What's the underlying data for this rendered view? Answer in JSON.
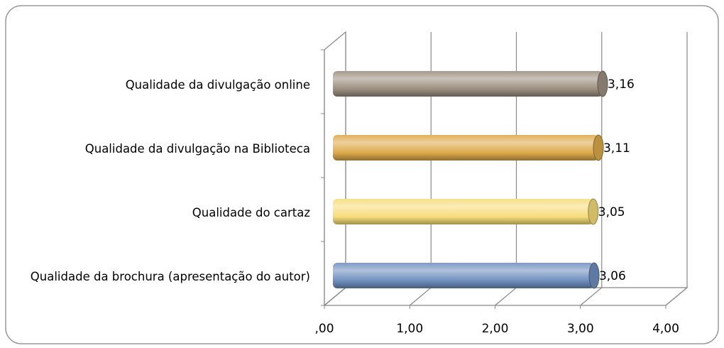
{
  "chart_data": {
    "type": "bar",
    "orientation": "horizontal",
    "categories": [
      "Qualidade da divulgação online",
      "Qualidade da divulgação na Biblioteca",
      "Qualidade do cartaz",
      "Qualidade da brochura (apresentação do autor)"
    ],
    "values": [
      3.16,
      3.11,
      3.05,
      3.06
    ],
    "value_labels": [
      "3,16",
      "3,11",
      "3,05",
      "3,06"
    ],
    "colors": [
      "#9c8f80",
      "#dca94a",
      "#f6dc7a",
      "#6f8fbf"
    ],
    "xlim": [
      0,
      4
    ],
    "xticks": [
      {
        "value": 0,
        "label": ",00"
      },
      {
        "value": 1,
        "label": "1,00"
      },
      {
        "value": 2,
        "label": "2,00"
      },
      {
        "value": 3,
        "label": "3,00"
      },
      {
        "value": 4,
        "label": "4,00"
      }
    ],
    "grid": true
  }
}
